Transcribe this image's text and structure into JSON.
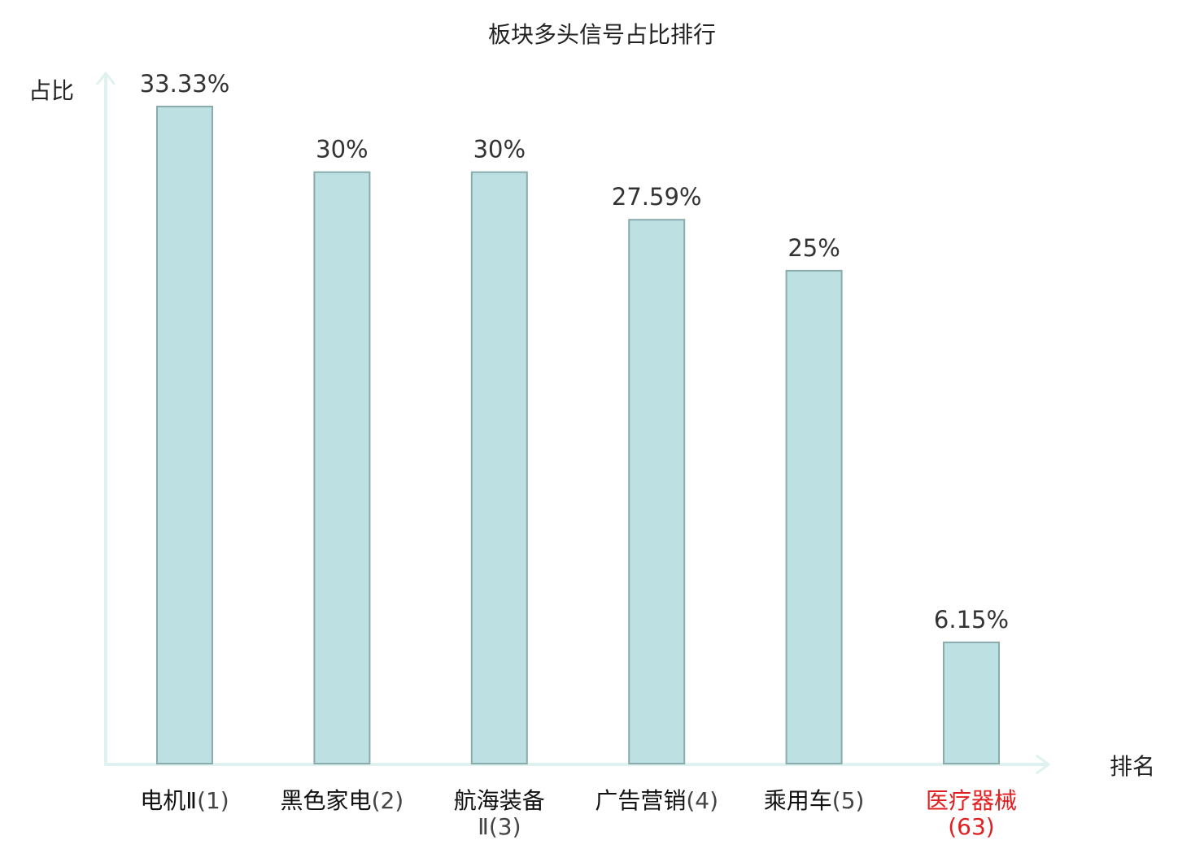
{
  "chart_data": {
    "type": "bar",
    "title": "板块多头信号占比排行",
    "ylabel": "占比",
    "xlabel": "排名",
    "categories": [
      {
        "name": "电机Ⅱ",
        "rank": "(1)",
        "highlight": false
      },
      {
        "name": "黑色家电",
        "rank": "(2)",
        "highlight": false
      },
      {
        "name": "航海装备",
        "rank": "Ⅱ(3)",
        "highlight": false
      },
      {
        "name": "广告营销",
        "rank": "(4)",
        "highlight": false
      },
      {
        "name": "乘用车",
        "rank": "(5)",
        "highlight": false
      },
      {
        "name": "医疗器械",
        "rank": "(63)",
        "highlight": true
      }
    ],
    "values": [
      33.33,
      30,
      30,
      27.59,
      25,
      6.15
    ],
    "value_labels": [
      "33.33%",
      "30%",
      "30%",
      "27.59%",
      "25%",
      "6.15%"
    ],
    "ylim": [
      0,
      33.33
    ],
    "grid": false,
    "colors": {
      "bar_fill": "#bde0e2",
      "bar_stroke": "#8aabac",
      "axis": "#e0f2ef",
      "text": "#333333",
      "highlight": "#e02020"
    }
  }
}
